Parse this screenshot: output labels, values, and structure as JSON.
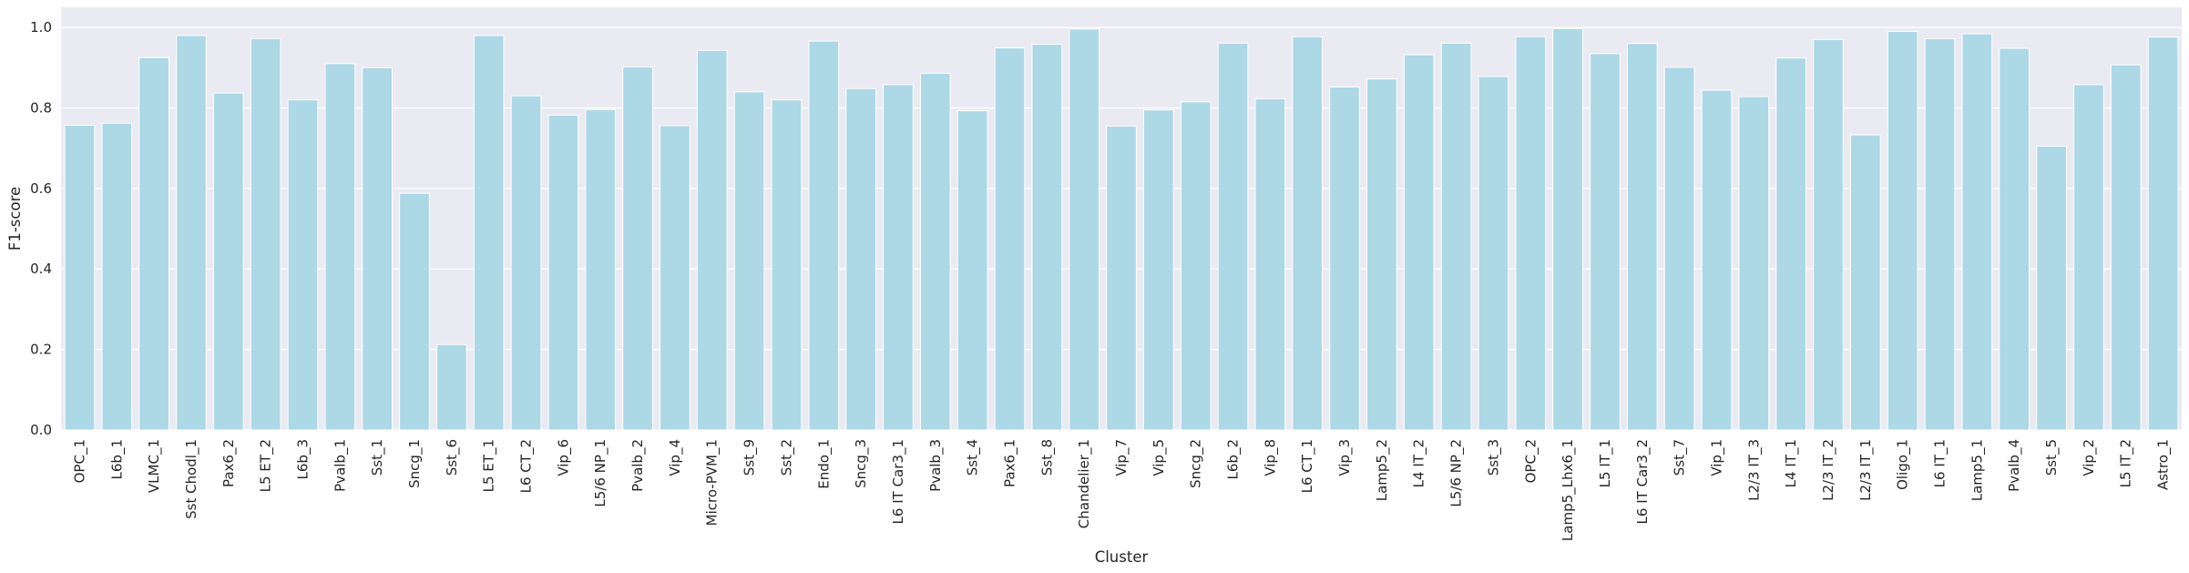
{
  "chart_data": {
    "type": "bar",
    "xlabel": "Cluster",
    "ylabel": "F1-score",
    "ylim": [
      0,
      1.05
    ],
    "yticks": [
      0.0,
      0.2,
      0.4,
      0.6,
      0.8,
      1.0
    ],
    "ytick_labels": [
      "0.0",
      "0.2",
      "0.4",
      "0.6",
      "0.8",
      "1.0"
    ],
    "grid": true,
    "bar_color": "#add8e6",
    "background_color": "#eaeaf2",
    "categories": [
      "OPC_1",
      "L6b_1",
      "VLMC_1",
      "Sst Chodl_1",
      "Pax6_2",
      "L5 ET_2",
      "L6b_3",
      "Pvalb_1",
      "Sst_1",
      "Sncg_1",
      "Sst_6",
      "L5 ET_1",
      "L6 CT_2",
      "Vip_6",
      "L5/6 NP_1",
      "Pvalb_2",
      "Vip_4",
      "Micro-PVM_1",
      "Sst_9",
      "Sst_2",
      "Endo_1",
      "Sncg_3",
      "L6 IT Car3_1",
      "Pvalb_3",
      "Sst_4",
      "Pax6_1",
      "Sst_8",
      "Chandelier_1",
      "Vip_7",
      "Vip_5",
      "Sncg_2",
      "L6b_2",
      "Vip_8",
      "L6 CT_1",
      "Vip_3",
      "Lamp5_2",
      "L4 IT_2",
      "L5/6 NP_2",
      "Sst_3",
      "OPC_2",
      "Lamp5_Lhx6_1",
      "L5 IT_1",
      "L6 IT Car3_2",
      "Sst_7",
      "Vip_1",
      "L2/3 IT_3",
      "L4 IT_1",
      "L2/3 IT_2",
      "L2/3 IT_1",
      "Oligo_1",
      "L6 IT_1",
      "Lamp5_1",
      "Pvalb_4",
      "Sst_5",
      "Vip_2",
      "L5 IT_2",
      "Astro_1"
    ],
    "values": [
      0.757,
      0.762,
      0.925,
      0.98,
      0.837,
      0.972,
      0.82,
      0.91,
      0.9,
      0.588,
      0.212,
      0.98,
      0.83,
      0.782,
      0.796,
      0.902,
      0.756,
      0.943,
      0.84,
      0.82,
      0.966,
      0.848,
      0.858,
      0.886,
      0.793,
      0.949,
      0.958,
      0.996,
      0.755,
      0.795,
      0.815,
      0.961,
      0.823,
      0.977,
      0.852,
      0.872,
      0.932,
      0.961,
      0.878,
      0.977,
      0.997,
      0.935,
      0.96,
      0.901,
      0.844,
      0.828,
      0.924,
      0.97,
      0.733,
      0.99,
      0.972,
      0.984,
      0.948,
      0.705,
      0.858,
      0.907,
      0.976
    ]
  }
}
